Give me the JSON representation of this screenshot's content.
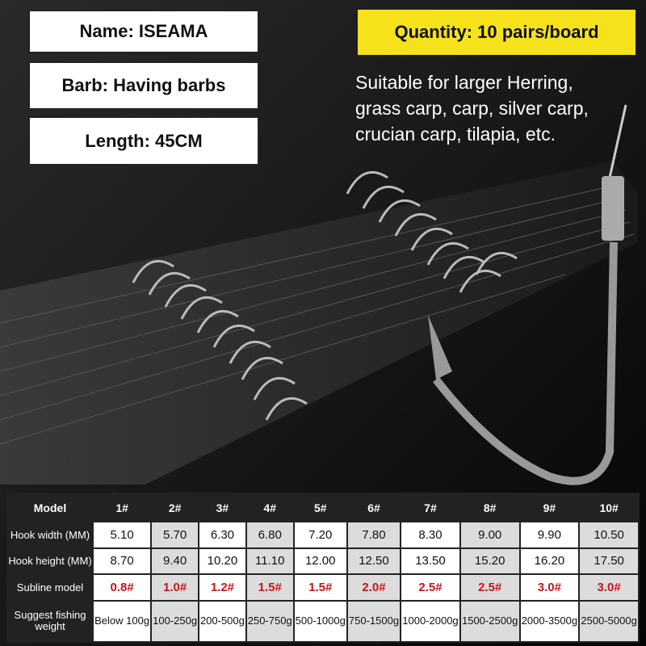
{
  "labels": {
    "name": "Name: ISEAMA",
    "barb": "Barb: Having barbs",
    "length": "Length: 45CM"
  },
  "quantity": "Quantity: 10 pairs/board",
  "suitable": [
    "Suitable for larger Herring,",
    "grass carp, carp, silver carp,",
    "crucian carp, tilapia, etc."
  ],
  "colors": {
    "quantity_bg": "#f5e21b",
    "subline_red": "#c8141a",
    "table_dark": "#222222"
  },
  "table": {
    "headers": [
      "Model",
      "1#",
      "2#",
      "3#",
      "4#",
      "5#",
      "6#",
      "7#",
      "8#",
      "9#",
      "10#"
    ],
    "rows": [
      {
        "label": "Hook width (MM)",
        "values": [
          "5.10",
          "5.70",
          "6.30",
          "6.80",
          "7.20",
          "7.80",
          "8.30",
          "9.00",
          "9.90",
          "10.50"
        ]
      },
      {
        "label": "Hook height (MM)",
        "values": [
          "8.70",
          "9.40",
          "10.20",
          "11.10",
          "12.00",
          "12.50",
          "13.50",
          "15.20",
          "16.20",
          "17.50"
        ]
      },
      {
        "label": "Subline model",
        "values": [
          "0.8#",
          "1.0#",
          "1.2#",
          "1.5#",
          "1.5#",
          "2.0#",
          "2.5#",
          "2.5#",
          "3.0#",
          "3.0#"
        ]
      },
      {
        "label": "Suggest fishing weight",
        "values": [
          "Below 100g",
          "100-250g",
          "200-500g",
          "250-750g",
          "500-1000g",
          "750-1500g",
          "1000-2000g",
          "1500-2500g",
          "2000-3500g",
          "2500-5000g"
        ]
      }
    ]
  }
}
